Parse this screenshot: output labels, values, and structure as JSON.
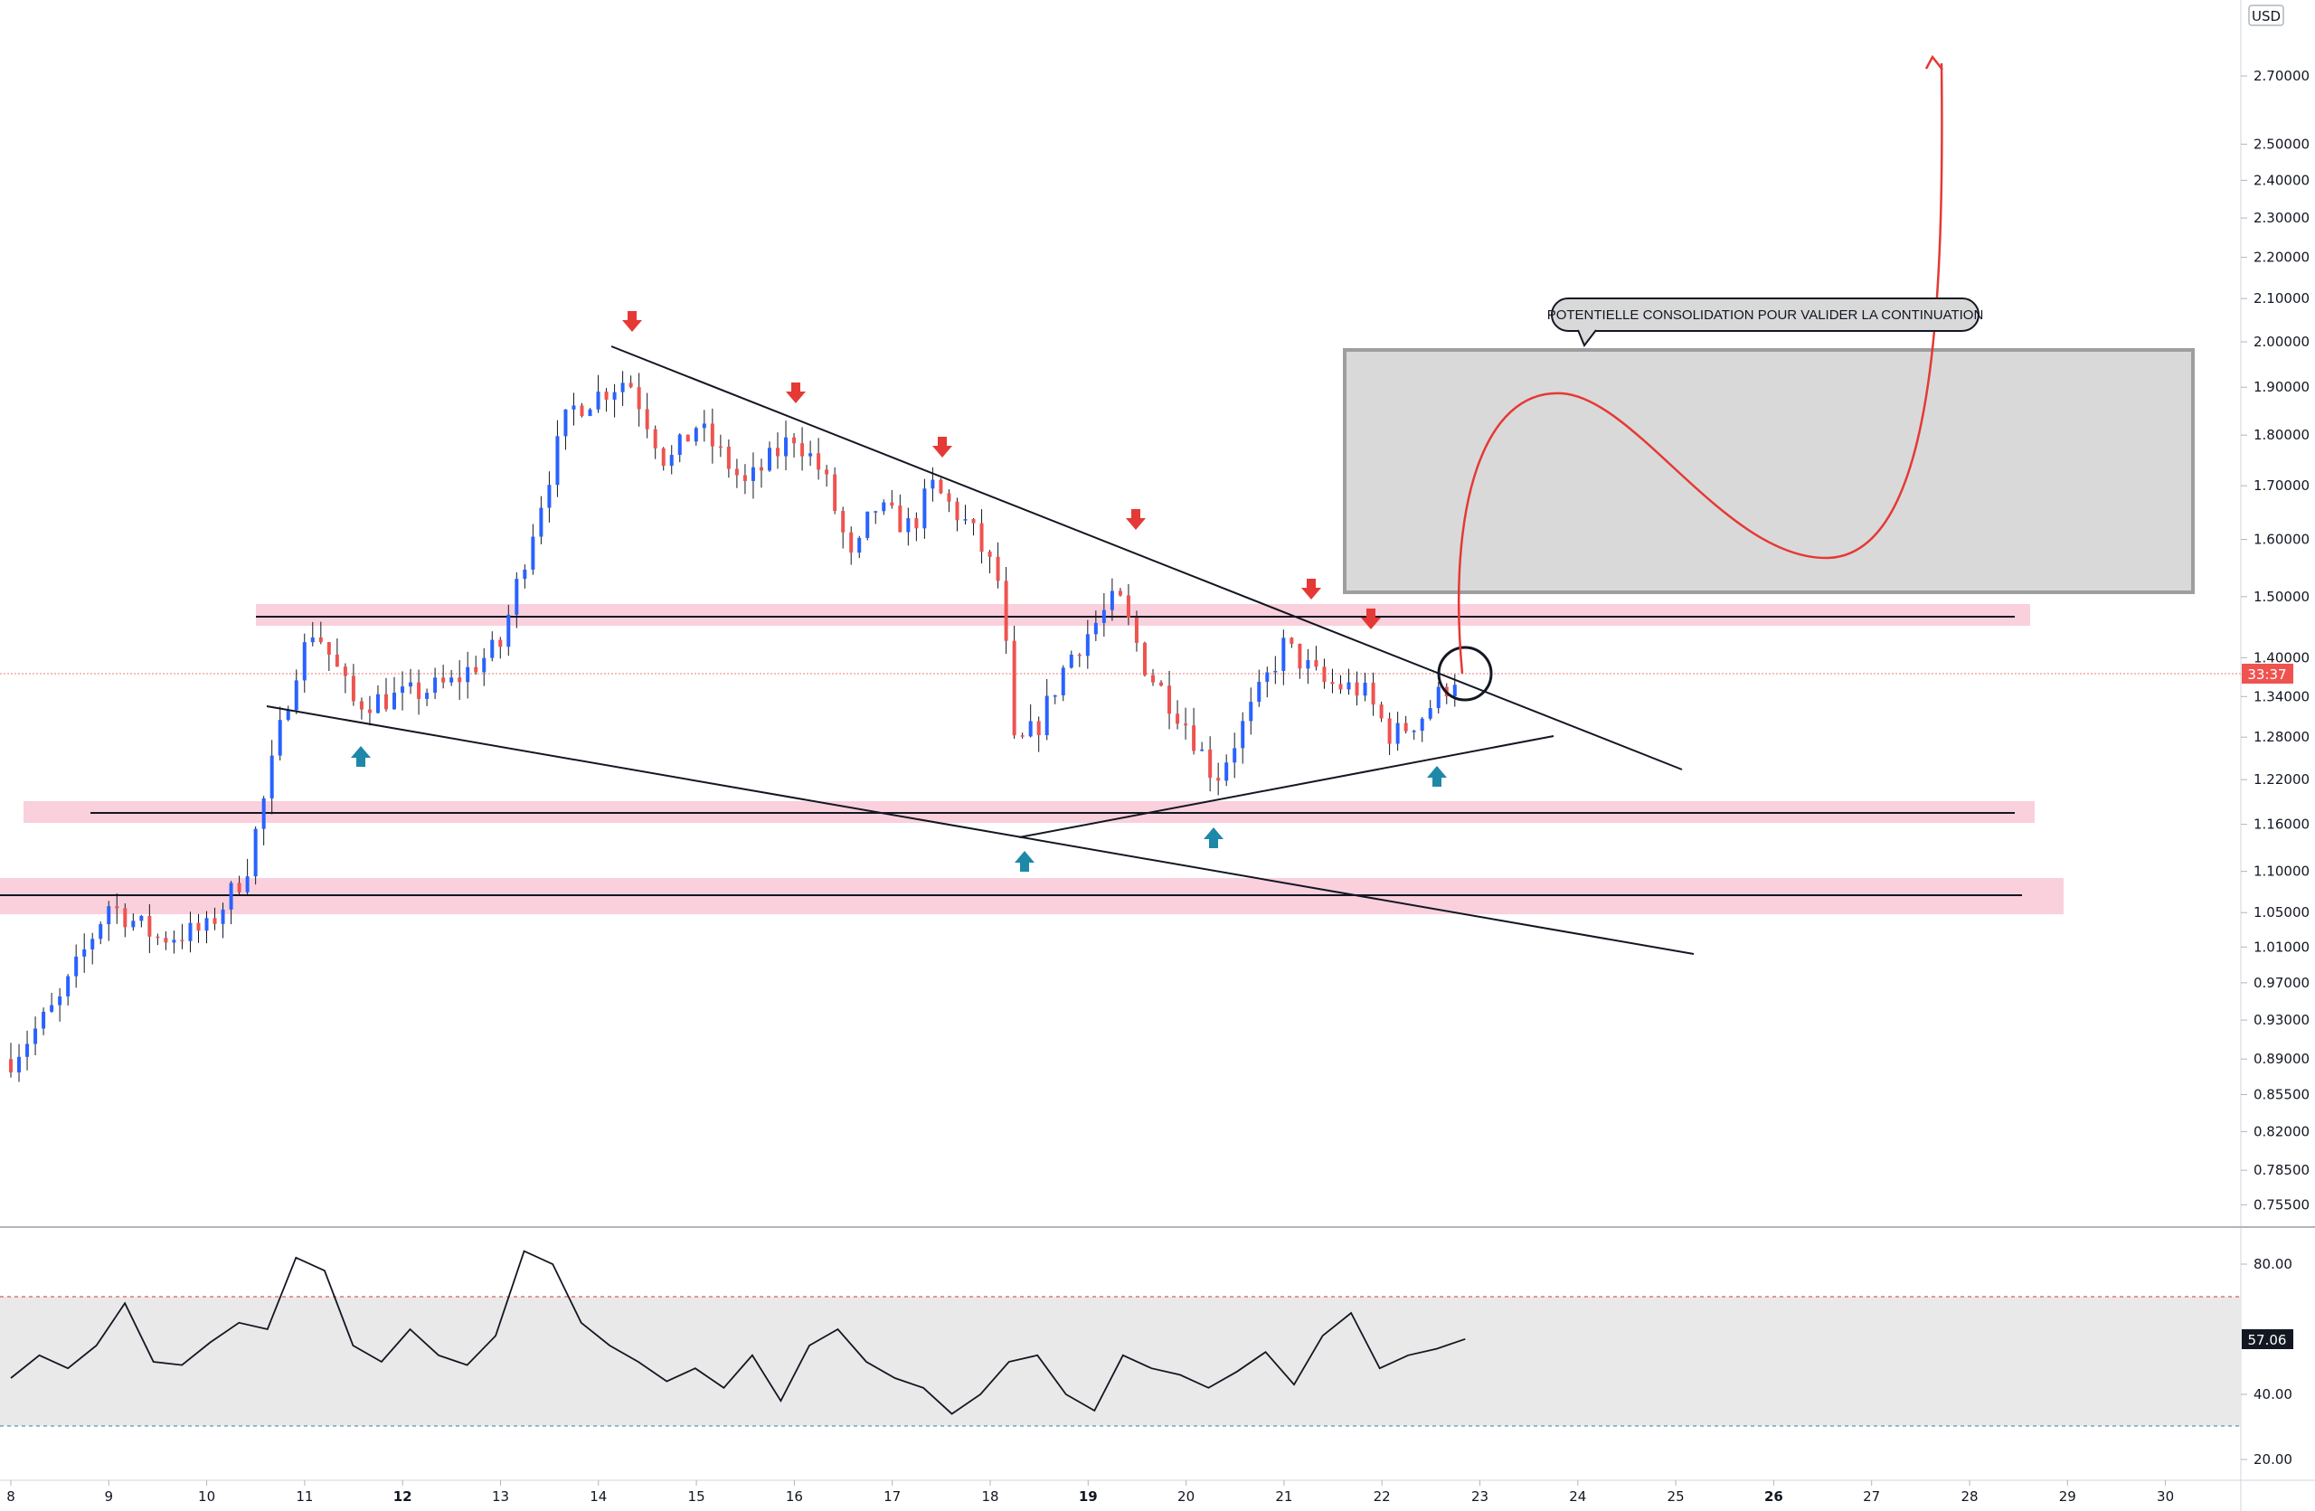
{
  "currency_label": "USD",
  "price_axis": {
    "ticks": [
      "2.70000",
      "2.50000",
      "2.40000",
      "2.30000",
      "2.20000",
      "2.10000",
      "2.00000",
      "1.90000",
      "1.80000",
      "1.70000",
      "1.60000",
      "1.50000",
      "1.40000",
      "1.34000",
      "1.28000",
      "1.22000",
      "1.16000",
      "1.10000",
      "1.05000",
      "1.01000",
      "0.97000",
      "0.93000",
      "0.89000",
      "0.85500",
      "0.82000",
      "0.78500",
      "0.75500"
    ],
    "current_price_badge": "33:37"
  },
  "time_axis": {
    "ticks": [
      "8",
      "9",
      "10",
      "11",
      "12",
      "13",
      "14",
      "15",
      "16",
      "17",
      "18",
      "19",
      "20",
      "21",
      "22",
      "23",
      "24",
      "25",
      "26",
      "27",
      "28",
      "29",
      "30"
    ],
    "bold_ticks": [
      "12",
      "19",
      "26"
    ]
  },
  "rsi_axis": {
    "ticks": [
      "80.00",
      "40.00",
      "20.00"
    ],
    "current_value": "57.06",
    "overbought": 70,
    "oversold": 30
  },
  "annotation": {
    "callout": "POTENTIELLE CONSOLIDATION POUR VALIDER LA CONTINUATION"
  },
  "colors": {
    "bull": "#2962ff",
    "bear": "#ef5350",
    "zone_pink": "#f8c8d6",
    "zone_gray": "#d9d9d9",
    "arrow_red": "#e53935",
    "arrow_teal": "#1e88a8",
    "projection_red": "#e53935"
  },
  "chart_data": [
    {
      "type": "candlestick",
      "title": "",
      "x": [
        "8",
        "9",
        "10",
        "11",
        "12",
        "13",
        "14",
        "15",
        "16",
        "17",
        "18",
        "19",
        "20",
        "21",
        "22",
        "23"
      ],
      "close_approx": [
        0.9,
        1.02,
        1.03,
        1.38,
        1.35,
        1.38,
        1.82,
        1.78,
        1.76,
        1.62,
        1.27,
        1.38,
        1.32,
        1.37,
        1.3,
        1.38
      ],
      "support_resistance_levels": [
        1.46,
        1.18,
        1.08
      ],
      "ylim": [
        0.74,
        2.9
      ],
      "scale": "log",
      "grid": false
    },
    {
      "type": "line",
      "title": "",
      "series": [
        {
          "values": [
            45,
            52,
            48,
            55,
            68,
            50,
            49,
            56,
            62,
            60,
            82,
            78,
            55,
            50,
            60,
            52,
            49,
            58,
            84,
            80,
            62,
            55,
            50,
            44,
            48,
            42,
            52,
            38,
            55,
            60,
            50,
            45,
            42,
            34,
            40,
            50,
            52,
            40,
            35,
            52,
            48,
            46,
            42,
            47,
            53,
            43,
            58,
            65,
            48,
            52,
            54,
            57
          ]
        }
      ],
      "ylim": [
        15,
        90
      ],
      "hlines": [
        70,
        30
      ]
    }
  ]
}
